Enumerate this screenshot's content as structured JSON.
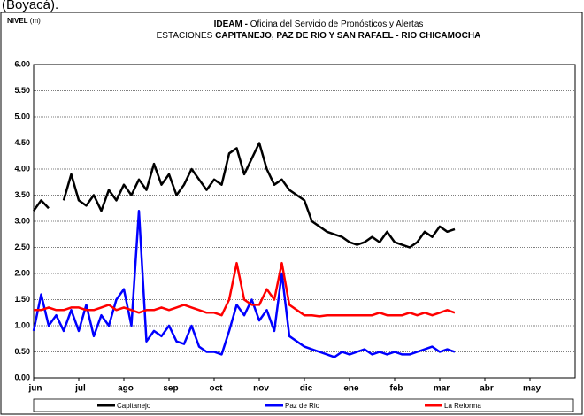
{
  "caption": "(Boyacá).",
  "chart_data": {
    "type": "line",
    "y_label": [
      "NIVEL",
      " (m)"
    ],
    "title": [
      [
        "IDEAM -",
        " Oficina del Servicio de Pronósticos y Alertas"
      ],
      [
        "ESTACIONES ",
        "CAPITANEJO, PAZ DE RIO Y SAN RAFAEL -  RIO CHICAMOCHA"
      ]
    ],
    "categories": [
      "jun",
      null,
      null,
      null,
      null,
      null,
      "jul",
      null,
      null,
      null,
      null,
      null,
      "ago",
      null,
      null,
      null,
      null,
      null,
      "sep",
      null,
      null,
      null,
      null,
      null,
      "oct",
      null,
      null,
      null,
      null,
      null,
      "nov",
      null,
      null,
      null,
      null,
      null,
      "dic",
      null,
      null,
      null,
      null,
      null,
      "ene",
      null,
      null,
      null,
      null,
      null,
      "feb",
      null,
      null,
      null,
      null,
      null,
      "mar",
      null,
      null,
      null,
      null,
      null,
      "abr",
      null,
      null,
      null,
      null,
      null,
      "may",
      null,
      null,
      null,
      null,
      null
    ],
    "series": [
      {
        "name": "Capitanejo",
        "color": "#000000",
        "values": [
          3.2,
          3.4,
          3.25,
          null,
          3.4,
          3.9,
          3.4,
          3.3,
          3.5,
          3.2,
          3.6,
          3.4,
          3.7,
          3.5,
          3.8,
          3.6,
          4.1,
          3.7,
          3.9,
          3.5,
          3.7,
          4.0,
          3.8,
          3.6,
          3.8,
          3.7,
          4.3,
          4.4,
          3.9,
          4.2,
          4.5,
          4.0,
          3.7,
          3.8,
          3.6,
          3.5,
          3.4,
          3.0,
          2.9,
          2.8,
          2.75,
          2.7,
          2.6,
          2.55,
          2.6,
          2.7,
          2.6,
          2.8,
          2.6,
          2.55,
          2.5,
          2.6,
          2.8,
          2.7,
          2.9,
          2.8,
          2.85,
          null,
          null,
          null,
          null,
          null,
          null,
          null,
          null,
          null,
          null,
          null,
          null,
          null,
          null,
          null
        ]
      },
      {
        "name": "Paz de Rio",
        "color": "#0000ff",
        "values": [
          0.9,
          1.6,
          1.0,
          1.2,
          0.9,
          1.3,
          0.9,
          1.4,
          0.8,
          1.2,
          1.0,
          1.5,
          1.7,
          1.0,
          3.2,
          0.7,
          0.9,
          0.8,
          1.0,
          0.7,
          0.65,
          1.0,
          0.6,
          0.5,
          0.5,
          0.45,
          0.9,
          1.4,
          1.2,
          1.5,
          1.1,
          1.3,
          0.9,
          2.0,
          0.8,
          0.7,
          0.6,
          0.55,
          0.5,
          0.45,
          0.4,
          0.5,
          0.45,
          0.5,
          0.55,
          0.45,
          0.5,
          0.45,
          0.5,
          0.45,
          0.45,
          0.5,
          0.55,
          0.6,
          0.5,
          0.55,
          0.5,
          null,
          null,
          null,
          null,
          null,
          null,
          null,
          null,
          null,
          null,
          null,
          null,
          null,
          null,
          null
        ]
      },
      {
        "name": "La Reforma",
        "color": "#ff0000",
        "values": [
          1.3,
          1.3,
          1.35,
          1.3,
          1.3,
          1.35,
          1.35,
          1.3,
          1.3,
          1.35,
          1.4,
          1.3,
          1.35,
          1.3,
          1.25,
          1.3,
          1.3,
          1.35,
          1.3,
          1.35,
          1.4,
          1.35,
          1.3,
          1.25,
          1.25,
          1.2,
          1.5,
          2.2,
          1.5,
          1.4,
          1.4,
          1.7,
          1.5,
          2.2,
          1.4,
          1.3,
          1.2,
          1.2,
          1.18,
          1.2,
          1.2,
          1.2,
          1.2,
          1.2,
          1.2,
          1.2,
          1.25,
          1.2,
          1.2,
          1.2,
          1.25,
          1.2,
          1.25,
          1.2,
          1.25,
          1.3,
          1.25,
          null,
          null,
          null,
          null,
          null,
          null,
          null,
          null,
          null,
          null,
          null,
          null,
          null,
          null,
          null
        ]
      }
    ],
    "ylim": [
      0,
      6
    ],
    "yticks": [
      {
        "value": 0,
        "label": "0.00"
      },
      {
        "value": 0.5,
        "label": "0.50"
      },
      {
        "value": 1,
        "label": "1.00"
      },
      {
        "value": 1.5,
        "label": "1.50"
      },
      {
        "value": 2,
        "label": "2.00"
      },
      {
        "value": 2.5,
        "label": "2.50"
      },
      {
        "value": 3,
        "label": "3.00"
      },
      {
        "value": 3.5,
        "label": "3.50"
      },
      {
        "value": 4,
        "label": "4.00"
      },
      {
        "value": 4.5,
        "label": "4.50"
      },
      {
        "value": 5,
        "label": "5.00"
      },
      {
        "value": 5.5,
        "label": "5.50"
      },
      {
        "value": 6,
        "label": "6.00"
      }
    ],
    "grid": true,
    "legend": "bottom"
  }
}
